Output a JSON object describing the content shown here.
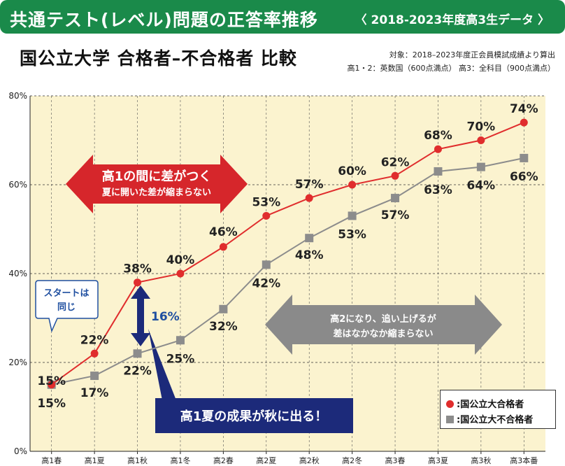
{
  "header": {
    "title": "共通テスト(レベル)問題の正答率推移",
    "subtitle": "〈 2018-2023年度高3生データ 〉"
  },
  "chart_title": "国公立大学 合格者–不合格者 比較",
  "notes": {
    "line1": "対象：2018–2023年度正会員模試成績より算出",
    "line2": "高1・2：英数国（600点満点） 高3：全科目（900点満点）"
  },
  "annotations": {
    "red_arrow_main": "高1の間に差がつく",
    "red_arrow_sub": "夏に開いた差が縮まらない",
    "gray_arrow_line1": "高2になり、追い上げるが",
    "gray_arrow_line2": "差はなかなか縮まらない",
    "start_callout_line1": "スタートは",
    "start_callout_line2": "同じ",
    "gap_label": "16%",
    "navy_box": "高1夏の成果が秋に出る！"
  },
  "legend": {
    "passed": "国公立大合格者",
    "failed": "国公立大不合格者"
  },
  "colors": {
    "passed": "#e02d2d",
    "failed": "#8c8c8c",
    "plot_bg": "#fbf3cf",
    "banner": "#1a8a4a",
    "navy": "#1c2a7a"
  },
  "chart_data": {
    "type": "line",
    "categories": [
      "高1春",
      "高1夏",
      "高1秋",
      "高1冬",
      "高2春",
      "高2夏",
      "高2秋",
      "高2冬",
      "高3春",
      "高3夏",
      "高3秋",
      "高3本番"
    ],
    "series": [
      {
        "name": "国公立大合格者",
        "values": [
          15,
          22,
          38,
          40,
          46,
          53,
          57,
          60,
          62,
          68,
          70,
          74
        ],
        "labels": [
          "15%",
          "22%",
          "38%",
          "40%",
          "46%",
          "53%",
          "57%",
          "60%",
          "62%",
          "68%",
          "70%",
          "74%"
        ]
      },
      {
        "name": "国公立大不合格者",
        "values": [
          15,
          17,
          22,
          25,
          32,
          42,
          48,
          53,
          57,
          63,
          64,
          66
        ],
        "labels": [
          "",
          "17%",
          "22%",
          "25%",
          "32%",
          "42%",
          "48%",
          "53%",
          "57%",
          "63%",
          "64%",
          "66%"
        ]
      }
    ],
    "ylim": [
      0,
      80
    ],
    "yticks": [
      0,
      20,
      40,
      60,
      80
    ],
    "ytick_labels": [
      "0%",
      "20%",
      "40%",
      "60%",
      "80%"
    ],
    "grid": "dashed horizontal and vertical",
    "legend_position": "bottom-right"
  }
}
